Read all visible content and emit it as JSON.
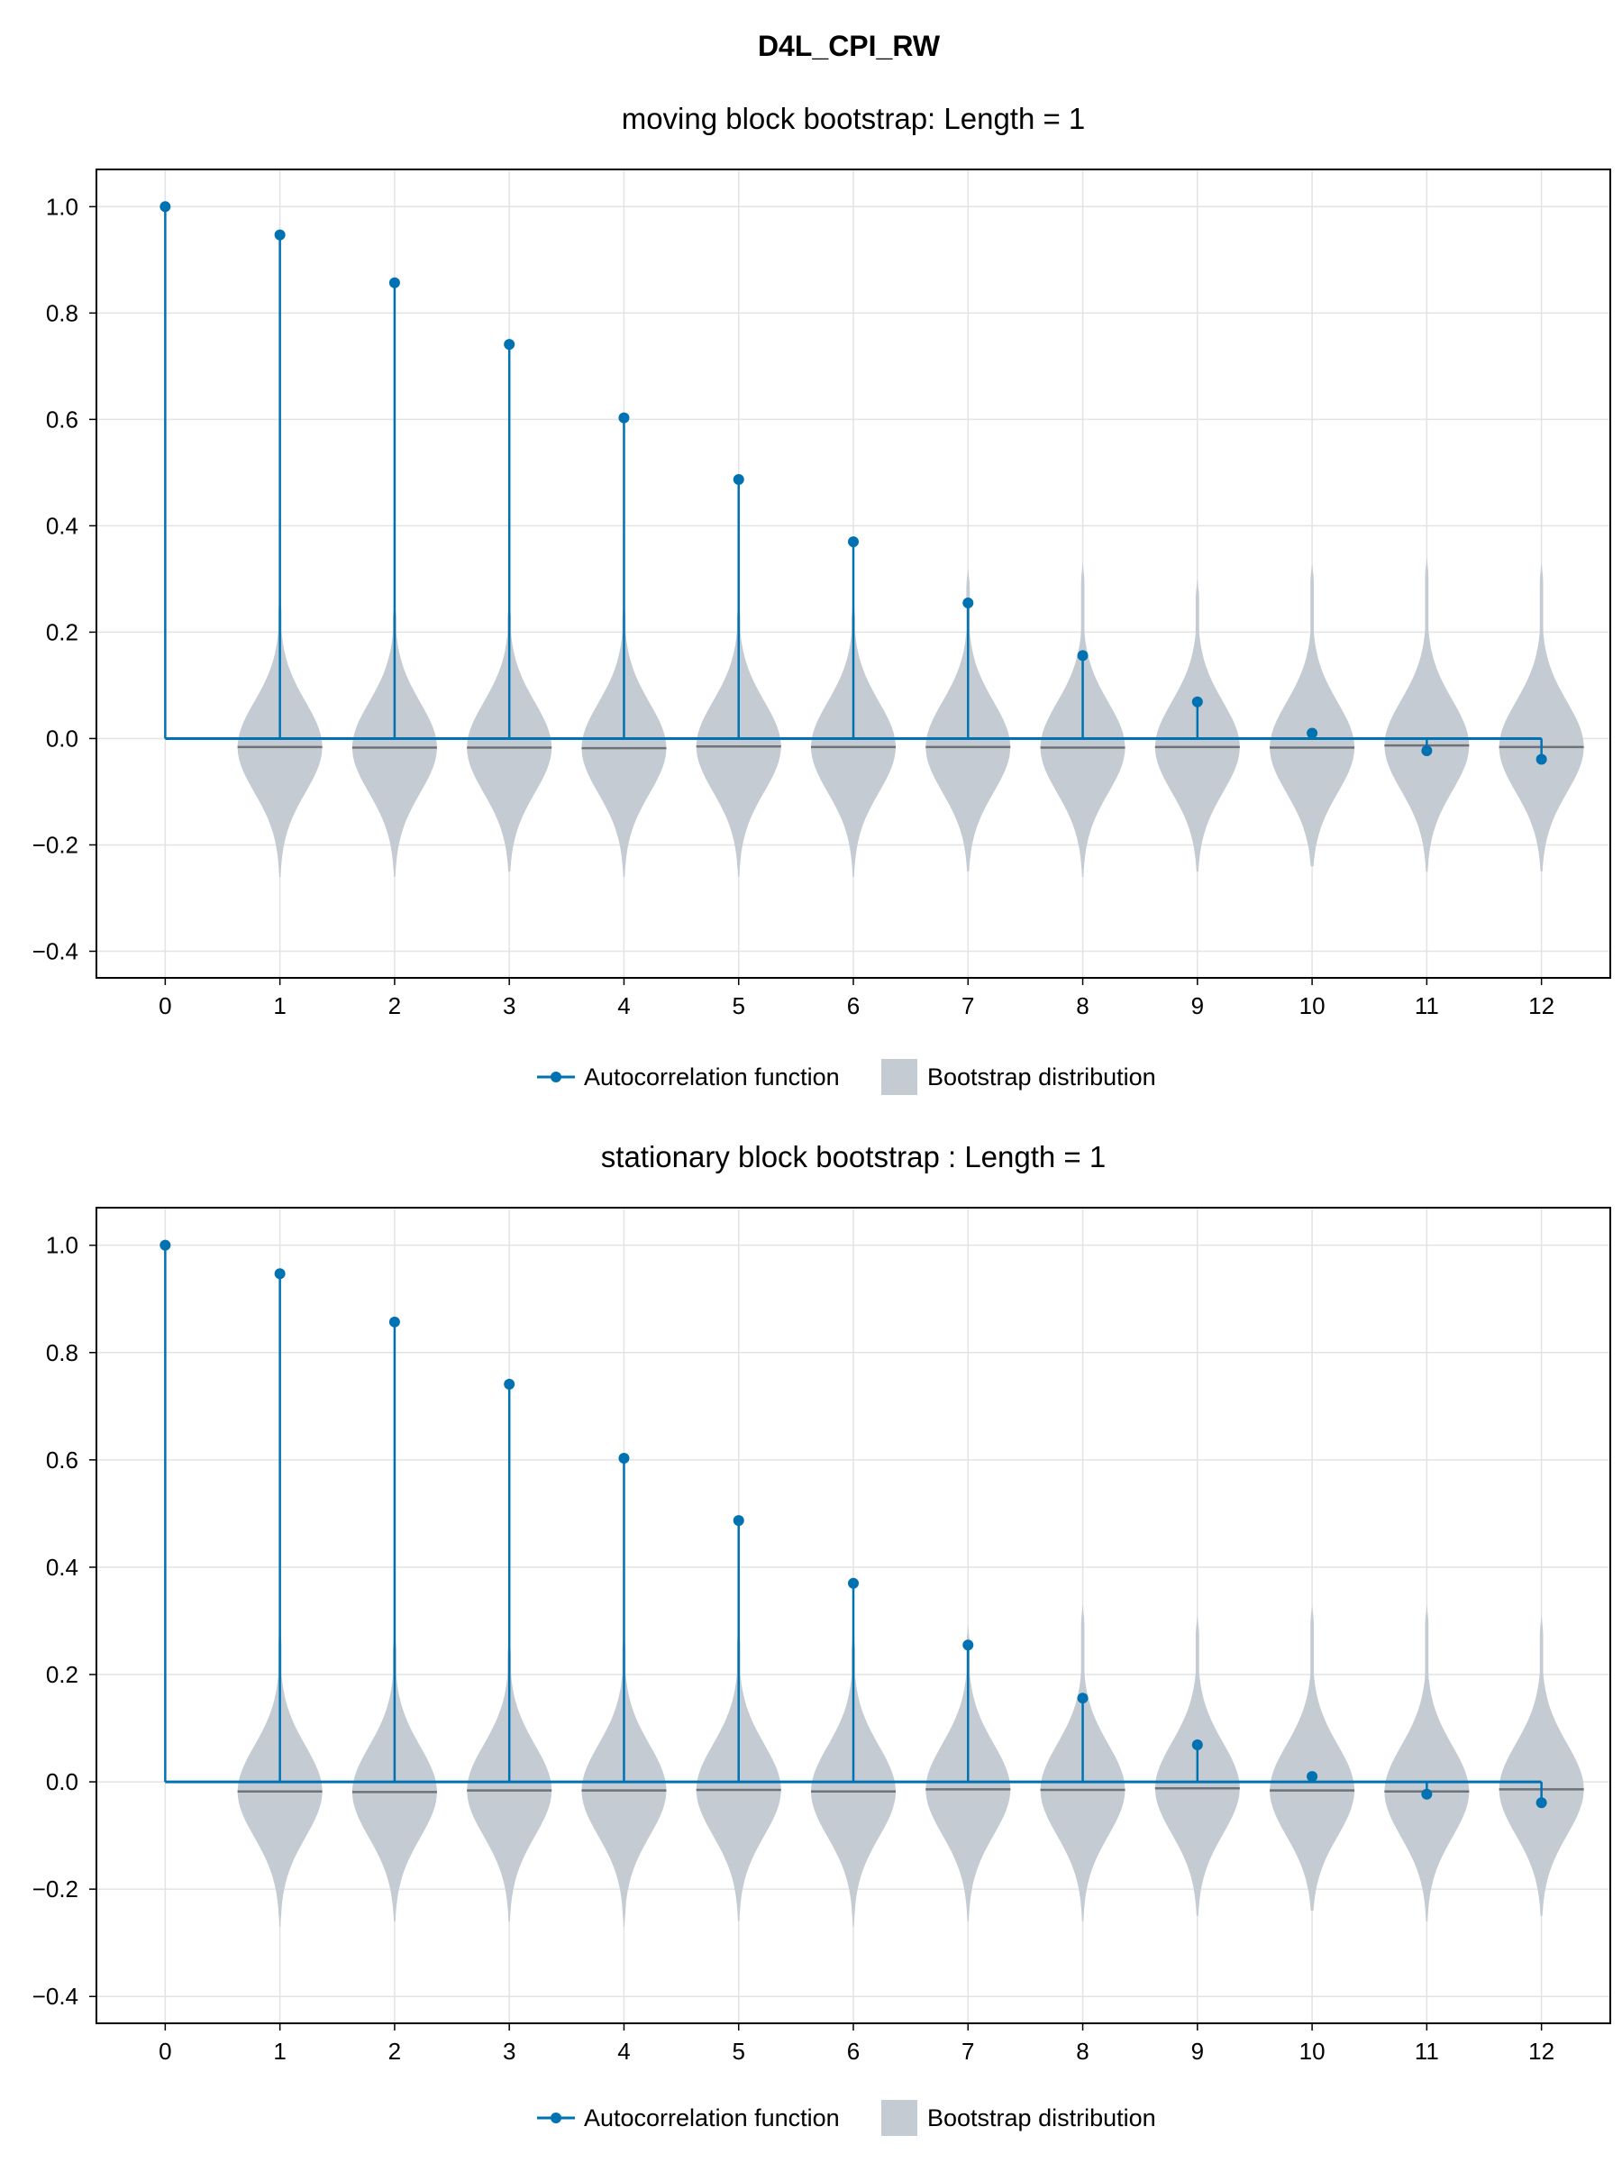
{
  "figure_title": "D4L_CPI_RW",
  "colors": {
    "acf": "#0072b2",
    "violin": "#c4cbd2",
    "median": "#6e7378",
    "grid": "#e3e3e3",
    "frame": "#000000"
  },
  "chart_data": [
    {
      "type": "stem_violin",
      "title": "moving block bootstrap: Length = 1",
      "xlabel": "",
      "ylabel": "",
      "xlim": [
        -0.6,
        12.6
      ],
      "ylim": [
        -0.45,
        1.07
      ],
      "x_ticks": [
        0,
        1,
        2,
        3,
        4,
        5,
        6,
        7,
        8,
        9,
        10,
        11,
        12
      ],
      "y_ticks": [
        -0.4,
        -0.2,
        0.0,
        0.2,
        0.4,
        0.6,
        0.8,
        1.0
      ],
      "y_tick_labels": [
        "−0.4",
        "−0.2",
        "0.0",
        "0.2",
        "0.4",
        "0.6",
        "0.8",
        "1.0"
      ],
      "grid": true,
      "legend_position": "bottom-center",
      "series": [
        {
          "name": "Autocorrelation function",
          "x": [
            0,
            1,
            2,
            3,
            4,
            5,
            6,
            7,
            8,
            9,
            10,
            11,
            12
          ],
          "values": [
            1.0,
            0.947,
            0.857,
            0.741,
            0.603,
            0.487,
            0.37,
            0.255,
            0.156,
            0.069,
            0.01,
            -0.023,
            -0.039
          ]
        },
        {
          "name": "Bootstrap distribution",
          "x": [
            1,
            2,
            3,
            4,
            5,
            6,
            7,
            8,
            9,
            10,
            11,
            12
          ],
          "medians": [
            -0.016,
            -0.017,
            -0.017,
            -0.018,
            -0.015,
            -0.016,
            -0.016,
            -0.017,
            -0.016,
            -0.017,
            -0.013,
            -0.016
          ],
          "min": [
            -0.26,
            -0.26,
            -0.25,
            -0.26,
            -0.26,
            -0.26,
            -0.25,
            -0.26,
            -0.25,
            -0.24,
            -0.25,
            -0.25
          ],
          "max": [
            0.27,
            0.26,
            0.26,
            0.26,
            0.26,
            0.26,
            0.32,
            0.33,
            0.3,
            0.33,
            0.34,
            0.33
          ]
        }
      ]
    },
    {
      "type": "stem_violin",
      "title": "stationary block bootstrap : Length = 1",
      "xlabel": "",
      "ylabel": "",
      "xlim": [
        -0.6,
        12.6
      ],
      "ylim": [
        -0.45,
        1.07
      ],
      "x_ticks": [
        0,
        1,
        2,
        3,
        4,
        5,
        6,
        7,
        8,
        9,
        10,
        11,
        12
      ],
      "y_ticks": [
        -0.4,
        -0.2,
        0.0,
        0.2,
        0.4,
        0.6,
        0.8,
        1.0
      ],
      "y_tick_labels": [
        "−0.4",
        "−0.2",
        "0.0",
        "0.2",
        "0.4",
        "0.6",
        "0.8",
        "1.0"
      ],
      "grid": true,
      "legend_position": "bottom-center",
      "series": [
        {
          "name": "Autocorrelation function",
          "x": [
            0,
            1,
            2,
            3,
            4,
            5,
            6,
            7,
            8,
            9,
            10,
            11,
            12
          ],
          "values": [
            1.0,
            0.947,
            0.857,
            0.741,
            0.603,
            0.487,
            0.37,
            0.255,
            0.156,
            0.069,
            0.01,
            -0.023,
            -0.039
          ]
        },
        {
          "name": "Bootstrap distribution",
          "x": [
            1,
            2,
            3,
            4,
            5,
            6,
            7,
            8,
            9,
            10,
            11,
            12
          ],
          "medians": [
            -0.018,
            -0.019,
            -0.016,
            -0.016,
            -0.015,
            -0.018,
            -0.014,
            -0.015,
            -0.012,
            -0.016,
            -0.018,
            -0.014
          ],
          "min": [
            -0.27,
            -0.26,
            -0.26,
            -0.27,
            -0.26,
            -0.27,
            -0.26,
            -0.26,
            -0.25,
            -0.24,
            -0.26,
            -0.25
          ],
          "max": [
            0.29,
            0.28,
            0.27,
            0.28,
            0.29,
            0.28,
            0.29,
            0.33,
            0.31,
            0.33,
            0.33,
            0.31
          ]
        }
      ]
    }
  ]
}
